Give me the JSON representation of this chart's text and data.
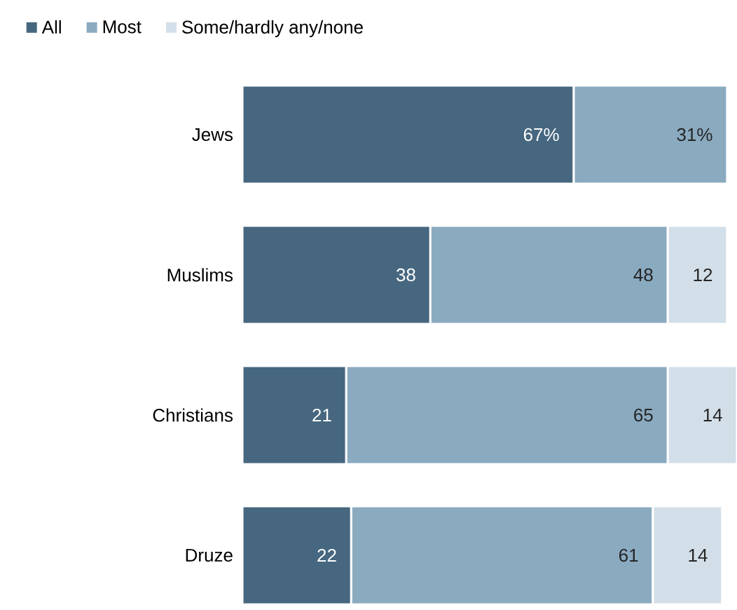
{
  "chart_data": {
    "type": "bar",
    "orientation": "horizontal",
    "stacked": true,
    "legend": "top left",
    "categories": [
      "Jews",
      "Muslims",
      "Christians",
      "Druze"
    ],
    "series": [
      {
        "name": "All",
        "color": "#46677f",
        "values": [
          67,
          38,
          21,
          22
        ],
        "value_labels": [
          "67%",
          "38",
          "21",
          "22"
        ]
      },
      {
        "name": "Most",
        "color": "#8aaac0",
        "values": [
          31,
          48,
          65,
          61
        ],
        "value_labels": [
          "31%",
          "48",
          "65",
          "61"
        ]
      },
      {
        "name": "Some/hardly any/none",
        "color": "#d3dfe8",
        "values": [
          null,
          12,
          14,
          14
        ],
        "value_labels": [
          null,
          "12",
          "14",
          "14"
        ]
      }
    ]
  }
}
